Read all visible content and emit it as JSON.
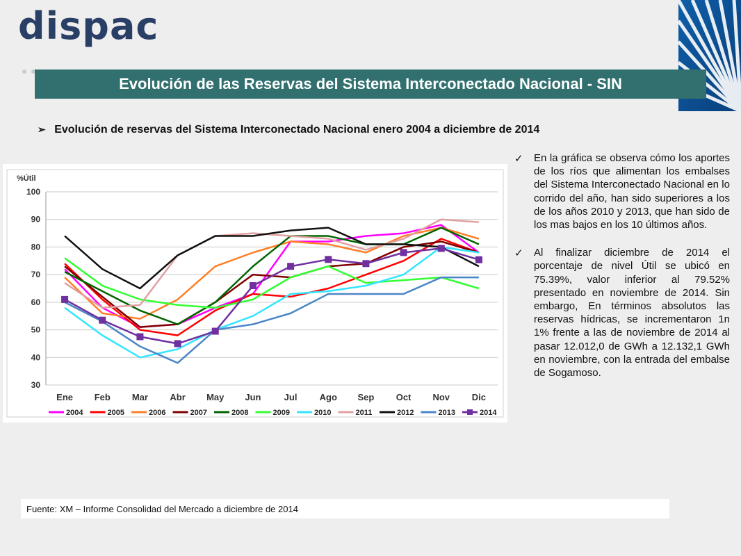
{
  "logo": {
    "text": "dispac",
    "tm": "®"
  },
  "header": {
    "title": "Evolución de las Reservas del Sistema Interconectado Nacional - SIN"
  },
  "subtitle": {
    "arrow": "➢",
    "text": "Evolución de reservas del Sistema Interconectado Nacional enero 2004 a diciembre de 2014"
  },
  "bullets": [
    {
      "check": "✓",
      "text": "En la gráfica se observa cómo los aportes de los ríos que alimentan los embalses del Sistema Interconectado Nacional en lo corrido del año, han sido superiores a los de los años 2010 y 2013, que han sido de los mas bajos en los 10 últimos años."
    },
    {
      "check": "✓",
      "text": "Al finalizar diciembre de 2014 el porcentaje de nivel Útil se ubicó en 75.39%, valor inferior al 79.52% presentado en noviembre de 2014. Sin embargo, En términos absolutos las reservas hídricas, se incrementaron 1n 1% frente a las de noviembre de 2014 al pasar 12.012,0 de GWh a 12.132,1 GWh en noviembre, con la entrada del embalse de Sogamoso."
    }
  ],
  "source": "Fuente: XM – Informe Consolidad del Mercado a diciembre de 2014",
  "chart_data": {
    "type": "line",
    "ylabel": "%Útil",
    "ylim": [
      30,
      100
    ],
    "yticks": [
      30,
      40,
      50,
      60,
      70,
      80,
      90,
      100
    ],
    "grid": true,
    "legend": "bottom",
    "categories": [
      "Ene",
      "Feb",
      "Mar",
      "Abr",
      "May",
      "Jun",
      "Jul",
      "Ago",
      "Sep",
      "Oct",
      "Nov",
      "Dic"
    ],
    "series": [
      {
        "name": "2004",
        "color": "#ff00ff",
        "values": [
          72,
          58,
          51,
          52,
          58,
          63,
          82,
          82,
          84,
          85,
          88,
          78
        ]
      },
      {
        "name": "2005",
        "color": "#ff0000",
        "values": [
          74,
          61,
          50,
          48,
          57,
          63,
          62,
          65,
          70,
          75,
          83,
          78
        ]
      },
      {
        "name": "2006",
        "color": "#ff7f27",
        "values": [
          69,
          56,
          54,
          61,
          73,
          78,
          82,
          81,
          78,
          84,
          87,
          83
        ]
      },
      {
        "name": "2007",
        "color": "#800000",
        "values": [
          73,
          62,
          51,
          52,
          60,
          70,
          69,
          73,
          74,
          80,
          82,
          78
        ]
      },
      {
        "name": "2008",
        "color": "#006400",
        "values": [
          71,
          64,
          57,
          52,
          60,
          73,
          84,
          84,
          81,
          81,
          87,
          81
        ]
      },
      {
        "name": "2009",
        "color": "#32ff32",
        "values": [
          76,
          66,
          61,
          59,
          58,
          61,
          69,
          73,
          67,
          68,
          69,
          65
        ]
      },
      {
        "name": "2010",
        "color": "#33e5ff",
        "values": [
          58,
          48,
          40,
          43,
          50,
          55,
          63,
          64,
          66,
          70,
          80,
          78
        ]
      },
      {
        "name": "2011",
        "color": "#e0a0a0",
        "values": [
          67,
          58,
          59,
          77,
          84,
          85,
          84,
          83,
          79,
          83,
          90,
          89
        ]
      },
      {
        "name": "2012",
        "color": "#111111",
        "values": [
          84,
          72,
          65,
          77,
          84,
          84,
          86,
          87,
          81,
          81,
          80,
          73
        ]
      },
      {
        "name": "2013",
        "color": "#4a86c8",
        "values": [
          60,
          53,
          44,
          38,
          50,
          52,
          56,
          63,
          63,
          63,
          69,
          69
        ]
      },
      {
        "name": "2014",
        "color": "#7030a0",
        "marker": "square",
        "values": [
          61,
          53.5,
          47.5,
          45,
          49.5,
          66,
          73,
          75.5,
          74,
          78,
          79.5,
          75.4
        ]
      }
    ]
  }
}
